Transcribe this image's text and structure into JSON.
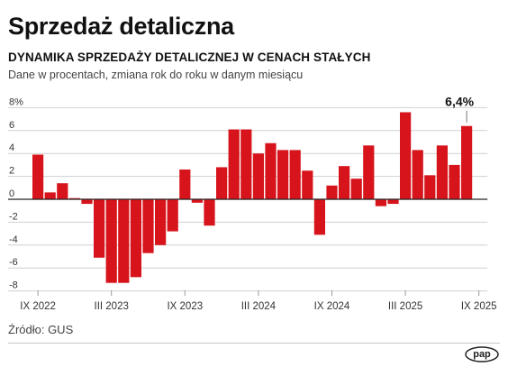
{
  "header": {
    "title": "Sprzedaż detaliczna",
    "subtitle": "DYNAMIKA SPRZEDAŻY DETALICZNEJ W CENACH STAŁYCH",
    "description": "Dane w procentach, zmiana rok do roku w danym miesiącu"
  },
  "footer": {
    "source": "Źródło: GUS",
    "logo_text": "pap"
  },
  "chart_data": {
    "type": "bar",
    "x_labels": [
      "IX 2022",
      "III 2023",
      "IX 2023",
      "III 2024",
      "IX 2024",
      "III 2025",
      "IX 2025"
    ],
    "x_label_indices": [
      0,
      6,
      12,
      18,
      24,
      30,
      36
    ],
    "categories": [
      "IX 2022",
      "X 2022",
      "XI 2022",
      "XII 2022",
      "I 2023",
      "II 2023",
      "III 2023",
      "IV 2023",
      "V 2023",
      "VI 2023",
      "VII 2023",
      "VIII 2023",
      "IX 2023",
      "X 2023",
      "XI 2023",
      "XII 2023",
      "I 2024",
      "II 2024",
      "III 2024",
      "IV 2024",
      "V 2024",
      "VI 2024",
      "VII 2024",
      "VIII 2024",
      "IX 2024",
      "X 2024",
      "XI 2024",
      "XII 2024",
      "I 2025",
      "II 2025",
      "III 2025",
      "IV 2025",
      "V 2025",
      "VI 2025",
      "VII 2025",
      "VIII 2025",
      "IX 2025"
    ],
    "values": [
      3.9,
      0.6,
      1.4,
      0.1,
      -0.4,
      -5.1,
      -7.3,
      -7.3,
      -6.8,
      -4.7,
      -4.0,
      -2.8,
      2.6,
      -0.3,
      -2.3,
      2.8,
      6.1,
      6.1,
      4.0,
      4.9,
      4.3,
      4.3,
      2.5,
      -3.1,
      1.2,
      2.9,
      1.8,
      4.7,
      -0.6,
      -0.4,
      7.6,
      4.3,
      2.1,
      4.7,
      3.0,
      6.4,
      0
    ],
    "yticks": [
      "8%",
      "6",
      "4",
      "2",
      "0",
      "-2",
      "-4",
      "-6",
      "-8"
    ],
    "ylim": [
      -8.5,
      8.5
    ],
    "annotation": {
      "text": "6,4%",
      "index": 35
    },
    "colors": {
      "bar": "#d7141b",
      "axis": "#222222",
      "grid": "#d0d0d0",
      "label": "#333333"
    }
  }
}
